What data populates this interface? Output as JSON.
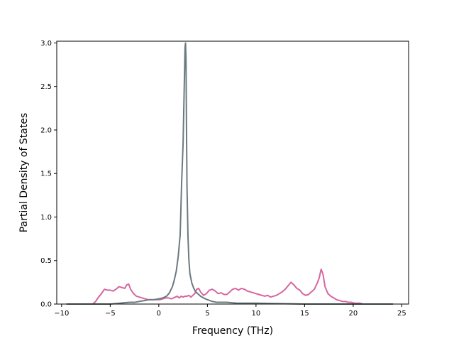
{
  "chart_data": {
    "type": "line",
    "title": "",
    "xlabel": "Frequency (THz)",
    "ylabel": "Partial Density of States",
    "xlim": [
      -10.5,
      25.7
    ],
    "ylim": [
      0.0,
      3.02
    ],
    "xticks": [
      -10,
      -5,
      0,
      5,
      10,
      15,
      20,
      25
    ],
    "yticks": [
      0.0,
      0.5,
      1.0,
      1.5,
      2.0,
      2.5,
      3.0
    ],
    "xtick_labels": [
      "−10",
      "−5",
      "0",
      "5",
      "10",
      "15",
      "20",
      "25"
    ],
    "ytick_labels": [
      "0.0",
      "0.5",
      "1.0",
      "1.5",
      "2.0",
      "2.5",
      "3.0"
    ],
    "grid": false,
    "legend": null,
    "series": [
      {
        "color": "#d6679f",
        "x": [
          -9.5,
          -6.8,
          -6.5,
          -6.2,
          -5.9,
          -5.6,
          -5.3,
          -5.0,
          -4.7,
          -4.4,
          -4.1,
          -3.8,
          -3.5,
          -3.3,
          -3.1,
          -2.9,
          -2.6,
          -2.3,
          -2.0,
          -1.7,
          -1.4,
          -1.1,
          -0.8,
          -0.5,
          -0.2,
          0.1,
          0.4,
          0.7,
          1.0,
          1.3,
          1.5,
          1.7,
          1.9,
          2.1,
          2.3,
          2.5,
          2.7,
          2.9,
          3.1,
          3.3,
          3.5,
          3.7,
          3.9,
          4.1,
          4.3,
          4.6,
          4.9,
          5.2,
          5.5,
          5.8,
          6.1,
          6.4,
          6.7,
          7.0,
          7.3,
          7.6,
          7.9,
          8.2,
          8.5,
          8.8,
          9.1,
          9.4,
          9.7,
          10.0,
          10.3,
          10.6,
          10.9,
          11.2,
          11.5,
          11.8,
          12.1,
          12.4,
          12.7,
          13.0,
          13.3,
          13.6,
          13.9,
          14.2,
          14.5,
          14.8,
          15.1,
          15.4,
          15.7,
          16.0,
          16.3,
          16.5,
          16.7,
          16.9,
          17.1,
          17.4,
          17.7,
          18.0,
          18.3,
          18.6,
          18.9,
          19.2,
          19.5,
          19.8,
          20.1,
          20.4,
          20.7,
          21.0,
          21.3
        ],
        "y": [
          0.0,
          0.0,
          0.03,
          0.08,
          0.12,
          0.17,
          0.16,
          0.16,
          0.15,
          0.17,
          0.2,
          0.19,
          0.18,
          0.22,
          0.23,
          0.17,
          0.12,
          0.09,
          0.08,
          0.07,
          0.06,
          0.05,
          0.05,
          0.05,
          0.05,
          0.05,
          0.06,
          0.07,
          0.07,
          0.06,
          0.07,
          0.08,
          0.09,
          0.07,
          0.09,
          0.08,
          0.09,
          0.09,
          0.1,
          0.08,
          0.1,
          0.12,
          0.17,
          0.18,
          0.14,
          0.1,
          0.12,
          0.16,
          0.17,
          0.15,
          0.12,
          0.13,
          0.11,
          0.11,
          0.14,
          0.17,
          0.18,
          0.16,
          0.18,
          0.17,
          0.15,
          0.14,
          0.13,
          0.12,
          0.11,
          0.1,
          0.09,
          0.1,
          0.08,
          0.09,
          0.1,
          0.12,
          0.14,
          0.17,
          0.21,
          0.25,
          0.22,
          0.18,
          0.16,
          0.12,
          0.1,
          0.11,
          0.14,
          0.17,
          0.24,
          0.3,
          0.4,
          0.34,
          0.2,
          0.12,
          0.09,
          0.07,
          0.05,
          0.04,
          0.03,
          0.03,
          0.02,
          0.02,
          0.01,
          0.01,
          0.01,
          0.0,
          0.0
        ]
      },
      {
        "color": "#6b7a80",
        "x": [
          -9.5,
          -5.0,
          -4.0,
          -3.0,
          -2.5,
          -2.0,
          -1.5,
          -1.0,
          -0.5,
          0.0,
          0.4,
          0.8,
          1.1,
          1.4,
          1.6,
          1.8,
          2.0,
          2.2,
          2.35,
          2.5,
          2.6,
          2.7,
          2.75,
          2.8,
          2.85,
          2.9,
          3.0,
          3.1,
          3.2,
          3.4,
          3.6,
          3.8,
          4.0,
          4.3,
          4.6,
          5.0,
          5.5,
          6.0,
          7.0,
          8.0,
          10.0,
          15.0,
          20.0,
          24.1
        ],
        "y": [
          0.0,
          0.0,
          0.01,
          0.02,
          0.02,
          0.03,
          0.04,
          0.05,
          0.05,
          0.06,
          0.07,
          0.09,
          0.13,
          0.2,
          0.28,
          0.38,
          0.55,
          0.8,
          1.4,
          1.85,
          2.4,
          2.95,
          3.0,
          2.8,
          2.0,
          1.35,
          0.78,
          0.5,
          0.35,
          0.24,
          0.18,
          0.14,
          0.12,
          0.09,
          0.07,
          0.05,
          0.03,
          0.02,
          0.02,
          0.01,
          0.01,
          0.0,
          0.0,
          0.0
        ]
      }
    ]
  }
}
